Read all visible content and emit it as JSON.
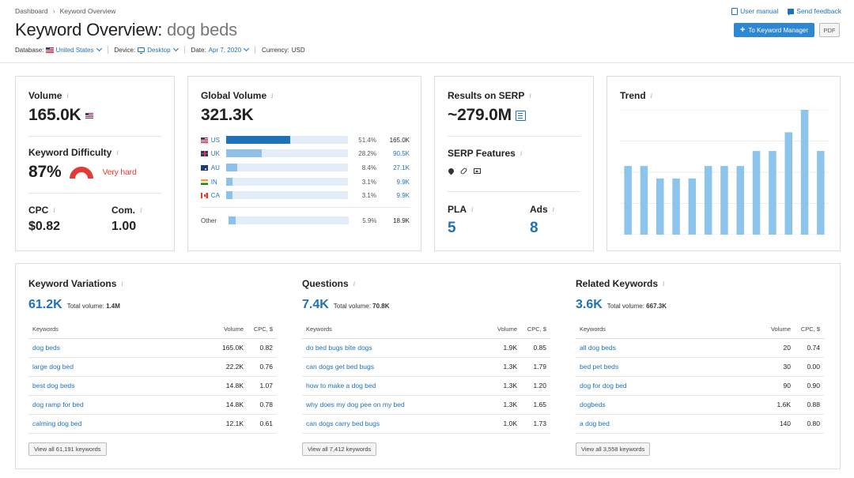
{
  "breadcrumb": [
    "Dashboard",
    "Keyword Overview"
  ],
  "page_title": {
    "prefix": "Keyword Overview:",
    "keyword": "dog beds"
  },
  "filters": {
    "database_label": "Database:",
    "database_value": "United States",
    "device_label": "Device:",
    "device_value": "Desktop",
    "date_label": "Date:",
    "date_value": "Apr 7, 2020",
    "currency_label": "Currency:",
    "currency_value": "USD"
  },
  "top_links": {
    "user_manual": "User manual",
    "send_feedback": "Send feedback"
  },
  "buttons": {
    "to_keyword_manager": "To Keyword Manager",
    "pdf": "PDF"
  },
  "volume_card": {
    "volume_label": "Volume",
    "volume_value": "165.0K",
    "kd_label": "Keyword Difficulty",
    "kd_value": "87%",
    "kd_text": "Very hard",
    "cpc_label": "CPC",
    "cpc_value": "$0.82",
    "com_label": "Com.",
    "com_value": "1.00"
  },
  "global_card": {
    "label": "Global Volume",
    "value": "321.3K",
    "countries": [
      {
        "code": "US",
        "pct": "51.4%",
        "volume": "165.0K",
        "share": 0.514
      },
      {
        "code": "UK",
        "pct": "28.2%",
        "volume": "90.5K",
        "share": 0.282
      },
      {
        "code": "AU",
        "pct": "8.4%",
        "volume": "27.1K",
        "share": 0.084
      },
      {
        "code": "IN",
        "pct": "3.1%",
        "volume": "9.9K",
        "share": 0.031
      },
      {
        "code": "CA",
        "pct": "3.1%",
        "volume": "9.9K",
        "share": 0.031
      }
    ],
    "other": {
      "label": "Other",
      "pct": "5.9%",
      "volume": "18.9K",
      "share": 0.059
    }
  },
  "serp_card": {
    "results_label": "Results on SERP",
    "results_value": "~279.0M",
    "features_label": "SERP Features",
    "feature_icons": [
      "map-pin-icon",
      "link-icon",
      "image-icon"
    ],
    "pla_label": "PLA",
    "pla_value": "5",
    "ads_label": "Ads",
    "ads_value": "8"
  },
  "trend_card": {
    "label": "Trend",
    "chart_data": {
      "type": "bar",
      "values": [
        0.55,
        0.55,
        0.45,
        0.45,
        0.45,
        0.55,
        0.55,
        0.55,
        0.67,
        0.67,
        0.82,
        1.0,
        0.67
      ],
      "ylim": [
        0,
        1
      ],
      "grid": true,
      "color": "#8cc4ec"
    }
  },
  "sections": [
    {
      "title": "Keyword Variations",
      "count": "61.2K",
      "total_label": "Total volume:",
      "total_value": "1.4M",
      "headers": [
        "Keywords",
        "Volume",
        "CPC, $"
      ],
      "rows": [
        [
          "dog beds",
          "165.0K",
          "0.82"
        ],
        [
          "large dog bed",
          "22.2K",
          "0.76"
        ],
        [
          "best dog beds",
          "14.8K",
          "1.07"
        ],
        [
          "dog ramp for bed",
          "14.8K",
          "0.78"
        ],
        [
          "calming dog bed",
          "12.1K",
          "0.61"
        ]
      ],
      "view_all": "View all 61,191 keywords"
    },
    {
      "title": "Questions",
      "count": "7.4K",
      "total_label": "Total volume:",
      "total_value": "70.8K",
      "headers": [
        "Keywords",
        "Volume",
        "CPC, $"
      ],
      "rows": [
        [
          "do bed bugs bite dogs",
          "1.9K",
          "0.85"
        ],
        [
          "can dogs get bed bugs",
          "1.3K",
          "1.79"
        ],
        [
          "how to make a dog bed",
          "1.3K",
          "1.20"
        ],
        [
          "why does my dog pee on my bed",
          "1.3K",
          "1.65"
        ],
        [
          "can dogs carry bed bugs",
          "1.0K",
          "1.73"
        ]
      ],
      "view_all": "View all 7,412 keywords"
    },
    {
      "title": "Related Keywords",
      "count": "3.6K",
      "total_label": "Total volume:",
      "total_value": "667.3K",
      "headers": [
        "Keywords",
        "Volume",
        "CPC, $"
      ],
      "rows": [
        [
          "all dog beds",
          "20",
          "0.74"
        ],
        [
          "bed pet beds",
          "30",
          "0.00"
        ],
        [
          "dog for dog bed",
          "90",
          "0.90"
        ],
        [
          "dogbeds",
          "1.6K",
          "0.88"
        ],
        [
          "a dog bed",
          "140",
          "0.80"
        ]
      ],
      "view_all": "View all 3,558 keywords"
    }
  ],
  "colors": {
    "accent": "#1e72b8",
    "button": "#2e87d3",
    "danger": "#e53935",
    "bar_top": "#1e72b8",
    "bar": "#8fc0ea",
    "track": "#e2edf7"
  }
}
